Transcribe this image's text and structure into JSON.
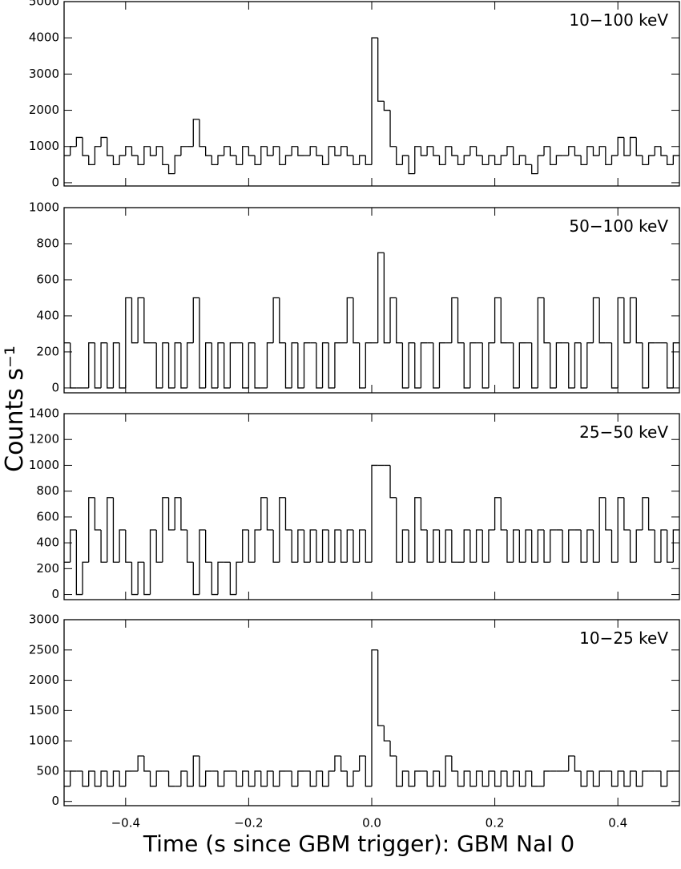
{
  "xlabel": "Time (s since GBM trigger): GBM NaI 0",
  "ylabel": "Counts s⁻¹",
  "chart_data": [
    {
      "type": "histogram",
      "label": "10−100 keV",
      "color": "#000000",
      "xlim": [
        -0.5,
        0.5
      ],
      "xticks": [
        -0.4,
        -0.2,
        0,
        0.2,
        0.4
      ],
      "ylim": [
        -90,
        5000
      ],
      "yticks": [
        0,
        1000,
        2000,
        3000,
        4000,
        5000
      ],
      "bins": [
        -0.5,
        -0.49,
        -0.48,
        -0.47,
        -0.46,
        -0.45,
        -0.44,
        -0.43,
        -0.42,
        -0.41,
        -0.4,
        -0.39,
        -0.38,
        -0.37,
        -0.36,
        -0.35,
        -0.34,
        -0.33,
        -0.32,
        -0.31,
        -0.3,
        -0.29,
        -0.28,
        -0.27,
        -0.26,
        -0.25,
        -0.24,
        -0.23,
        -0.22,
        -0.21,
        -0.2,
        -0.19,
        -0.18,
        -0.17,
        -0.16,
        -0.15,
        -0.14,
        -0.13,
        -0.12,
        -0.11,
        -0.1,
        -0.09,
        -0.08,
        -0.07,
        -0.06,
        -0.05,
        -0.04,
        -0.03,
        -0.02,
        -0.01,
        0,
        0.01,
        0.02,
        0.03,
        0.04,
        0.05,
        0.06,
        0.07,
        0.08,
        0.09,
        0.1,
        0.11,
        0.12,
        0.13,
        0.14,
        0.15,
        0.16,
        0.17,
        0.18,
        0.19,
        0.2,
        0.21,
        0.22,
        0.23,
        0.24,
        0.25,
        0.26,
        0.27,
        0.28,
        0.29,
        0.3,
        0.31,
        0.32,
        0.33,
        0.34,
        0.35,
        0.36,
        0.37,
        0.38,
        0.39,
        0.4,
        0.41,
        0.42,
        0.43,
        0.44,
        0.45,
        0.46,
        0.47,
        0.48,
        0.49,
        0.5
      ],
      "values": [
        750,
        1000,
        1250,
        750,
        500,
        1000,
        1250,
        750,
        500,
        750,
        1000,
        750,
        500,
        1000,
        750,
        1000,
        500,
        250,
        750,
        1000,
        1000,
        1750,
        1000,
        750,
        500,
        750,
        1000,
        750,
        500,
        1000,
        750,
        500,
        1000,
        750,
        1000,
        500,
        750,
        1000,
        750,
        750,
        1000,
        750,
        500,
        1000,
        750,
        1000,
        750,
        500,
        750,
        500,
        4000,
        2250,
        2000,
        1000,
        500,
        750,
        250,
        1000,
        750,
        1000,
        750,
        500,
        1000,
        750,
        500,
        750,
        1000,
        750,
        500,
        750,
        500,
        750,
        1000,
        500,
        750,
        500,
        250,
        750,
        1000,
        500,
        750,
        750,
        1000,
        750,
        500,
        1000,
        750,
        1000,
        500,
        750,
        1250,
        750,
        1250,
        750,
        500,
        750,
        1000,
        750,
        500,
        750
      ]
    },
    {
      "type": "histogram",
      "label": "50−100 keV",
      "color": "#000000",
      "xlim": [
        -0.5,
        0.5
      ],
      "xticks": [
        -0.4,
        -0.2,
        0,
        0.2,
        0.4
      ],
      "ylim": [
        -27,
        1000
      ],
      "yticks": [
        0,
        200,
        400,
        600,
        800,
        1000
      ],
      "bins": [
        -0.5,
        -0.49,
        -0.48,
        -0.47,
        -0.46,
        -0.45,
        -0.44,
        -0.43,
        -0.42,
        -0.41,
        -0.4,
        -0.39,
        -0.38,
        -0.37,
        -0.36,
        -0.35,
        -0.34,
        -0.33,
        -0.32,
        -0.31,
        -0.3,
        -0.29,
        -0.28,
        -0.27,
        -0.26,
        -0.25,
        -0.24,
        -0.23,
        -0.22,
        -0.21,
        -0.2,
        -0.19,
        -0.18,
        -0.17,
        -0.16,
        -0.15,
        -0.14,
        -0.13,
        -0.12,
        -0.11,
        -0.1,
        -0.09,
        -0.08,
        -0.07,
        -0.06,
        -0.05,
        -0.04,
        -0.03,
        -0.02,
        -0.01,
        0,
        0.01,
        0.02,
        0.03,
        0.04,
        0.05,
        0.06,
        0.07,
        0.08,
        0.09,
        0.1,
        0.11,
        0.12,
        0.13,
        0.14,
        0.15,
        0.16,
        0.17,
        0.18,
        0.19,
        0.2,
        0.21,
        0.22,
        0.23,
        0.24,
        0.25,
        0.26,
        0.27,
        0.28,
        0.29,
        0.3,
        0.31,
        0.32,
        0.33,
        0.34,
        0.35,
        0.36,
        0.37,
        0.38,
        0.39,
        0.4,
        0.41,
        0.42,
        0.43,
        0.44,
        0.45,
        0.46,
        0.47,
        0.48,
        0.49,
        0.5
      ],
      "values": [
        250,
        0,
        0,
        0,
        250,
        0,
        250,
        0,
        250,
        0,
        500,
        250,
        500,
        250,
        250,
        0,
        250,
        0,
        250,
        0,
        250,
        500,
        0,
        250,
        0,
        250,
        0,
        250,
        250,
        0,
        250,
        0,
        0,
        250,
        500,
        250,
        0,
        250,
        0,
        250,
        250,
        0,
        250,
        0,
        250,
        250,
        500,
        250,
        0,
        250,
        250,
        750,
        250,
        500,
        250,
        0,
        250,
        0,
        250,
        250,
        0,
        250,
        250,
        500,
        250,
        0,
        250,
        250,
        0,
        250,
        500,
        250,
        250,
        0,
        250,
        250,
        0,
        500,
        250,
        0,
        250,
        250,
        0,
        250,
        0,
        250,
        500,
        250,
        250,
        0,
        500,
        250,
        500,
        250,
        0,
        250,
        250,
        250,
        0,
        250
      ]
    },
    {
      "type": "histogram",
      "label": "25−50 keV",
      "color": "#000000",
      "xlim": [
        -0.5,
        0.5
      ],
      "xticks": [
        -0.4,
        -0.2,
        0,
        0.2,
        0.4
      ],
      "ylim": [
        -40,
        1400
      ],
      "yticks": [
        0,
        200,
        400,
        600,
        800,
        1000,
        1200,
        1400
      ],
      "bins": [
        -0.5,
        -0.49,
        -0.48,
        -0.47,
        -0.46,
        -0.45,
        -0.44,
        -0.43,
        -0.42,
        -0.41,
        -0.4,
        -0.39,
        -0.38,
        -0.37,
        -0.36,
        -0.35,
        -0.34,
        -0.33,
        -0.32,
        -0.31,
        -0.3,
        -0.29,
        -0.28,
        -0.27,
        -0.26,
        -0.25,
        -0.24,
        -0.23,
        -0.22,
        -0.21,
        -0.2,
        -0.19,
        -0.18,
        -0.17,
        -0.16,
        -0.15,
        -0.14,
        -0.13,
        -0.12,
        -0.11,
        -0.1,
        -0.09,
        -0.08,
        -0.07,
        -0.06,
        -0.05,
        -0.04,
        -0.03,
        -0.02,
        -0.01,
        0,
        0.01,
        0.02,
        0.03,
        0.04,
        0.05,
        0.06,
        0.07,
        0.08,
        0.09,
        0.1,
        0.11,
        0.12,
        0.13,
        0.14,
        0.15,
        0.16,
        0.17,
        0.18,
        0.19,
        0.2,
        0.21,
        0.22,
        0.23,
        0.24,
        0.25,
        0.26,
        0.27,
        0.28,
        0.29,
        0.3,
        0.31,
        0.32,
        0.33,
        0.34,
        0.35,
        0.36,
        0.37,
        0.38,
        0.39,
        0.4,
        0.41,
        0.42,
        0.43,
        0.44,
        0.45,
        0.46,
        0.47,
        0.48,
        0.49,
        0.5
      ],
      "values": [
        250,
        500,
        0,
        250,
        750,
        500,
        250,
        750,
        250,
        500,
        250,
        0,
        250,
        0,
        500,
        250,
        750,
        500,
        750,
        500,
        250,
        0,
        500,
        250,
        0,
        250,
        250,
        0,
        250,
        500,
        250,
        500,
        750,
        500,
        250,
        750,
        500,
        250,
        500,
        250,
        500,
        250,
        500,
        250,
        500,
        250,
        500,
        250,
        500,
        250,
        1000,
        1000,
        1000,
        750,
        250,
        500,
        250,
        750,
        500,
        250,
        500,
        250,
        500,
        250,
        250,
        500,
        250,
        500,
        250,
        500,
        750,
        500,
        250,
        500,
        250,
        500,
        250,
        500,
        250,
        500,
        500,
        250,
        500,
        500,
        250,
        500,
        250,
        750,
        500,
        250,
        750,
        500,
        250,
        500,
        750,
        500,
        250,
        500,
        250,
        500
      ]
    },
    {
      "type": "histogram",
      "label": "10−25 keV",
      "color": "#000000",
      "xlim": [
        -0.5,
        0.5
      ],
      "xticks": [
        {
          "value": -0.4,
          "label": "−0.4"
        },
        {
          "value": -0.2,
          "label": "−0.2"
        },
        {
          "value": 0,
          "label": "0.0"
        },
        0.2,
        0.4
      ],
      "ylim": [
        -70,
        3000
      ],
      "yticks": [
        0,
        500,
        1000,
        1500,
        2000,
        2500,
        3000
      ],
      "bins": [
        -0.5,
        -0.49,
        -0.48,
        -0.47,
        -0.46,
        -0.45,
        -0.44,
        -0.43,
        -0.42,
        -0.41,
        -0.4,
        -0.39,
        -0.38,
        -0.37,
        -0.36,
        -0.35,
        -0.34,
        -0.33,
        -0.32,
        -0.31,
        -0.3,
        -0.29,
        -0.28,
        -0.27,
        -0.26,
        -0.25,
        -0.24,
        -0.23,
        -0.22,
        -0.21,
        -0.2,
        -0.19,
        -0.18,
        -0.17,
        -0.16,
        -0.15,
        -0.14,
        -0.13,
        -0.12,
        -0.11,
        -0.1,
        -0.09,
        -0.08,
        -0.07,
        -0.06,
        -0.05,
        -0.04,
        -0.03,
        -0.02,
        -0.01,
        0,
        0.01,
        0.02,
        0.03,
        0.04,
        0.05,
        0.06,
        0.07,
        0.08,
        0.09,
        0.1,
        0.11,
        0.12,
        0.13,
        0.14,
        0.15,
        0.16,
        0.17,
        0.18,
        0.19,
        0.2,
        0.21,
        0.22,
        0.23,
        0.24,
        0.25,
        0.26,
        0.27,
        0.28,
        0.29,
        0.3,
        0.31,
        0.32,
        0.33,
        0.34,
        0.35,
        0.36,
        0.37,
        0.38,
        0.39,
        0.4,
        0.41,
        0.42,
        0.43,
        0.44,
        0.45,
        0.46,
        0.47,
        0.48,
        0.49,
        0.5
      ],
      "values": [
        250,
        500,
        500,
        250,
        500,
        250,
        500,
        250,
        500,
        250,
        500,
        500,
        750,
        500,
        250,
        500,
        500,
        250,
        250,
        500,
        250,
        750,
        250,
        500,
        500,
        250,
        500,
        500,
        250,
        500,
        250,
        500,
        250,
        500,
        250,
        500,
        500,
        250,
        500,
        500,
        250,
        500,
        250,
        500,
        750,
        500,
        250,
        500,
        750,
        250,
        2500,
        1250,
        1000,
        750,
        250,
        500,
        250,
        500,
        500,
        250,
        500,
        250,
        750,
        500,
        250,
        500,
        250,
        500,
        250,
        500,
        250,
        500,
        250,
        500,
        250,
        500,
        250,
        250,
        500,
        500,
        500,
        500,
        750,
        500,
        250,
        500,
        250,
        500,
        500,
        250,
        500,
        250,
        500,
        250,
        500,
        500,
        500,
        250,
        500,
        500
      ]
    }
  ]
}
